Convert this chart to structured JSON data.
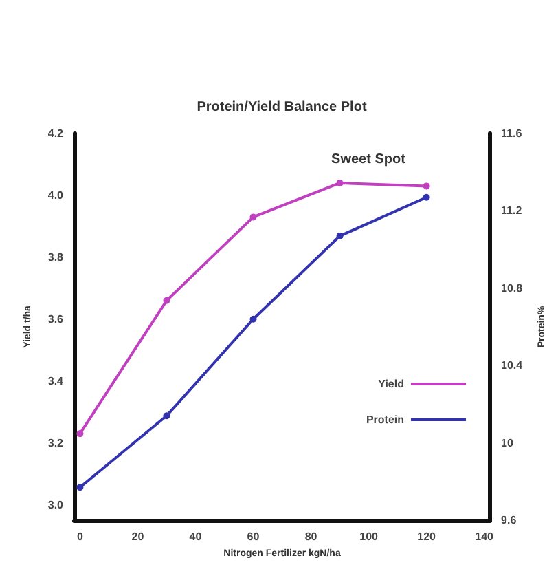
{
  "chart_data": {
    "type": "line",
    "title": "Protein/Yield Balance Plot",
    "xlabel": "Nitrogen Fertilizer kgN/ha",
    "ylabel": "Yield t/ha",
    "y2label": "Protein%",
    "x": [
      0,
      30,
      60,
      90,
      120
    ],
    "series": [
      {
        "name": "Yield",
        "color": "#c040c0",
        "values": [
          3.23,
          3.66,
          3.93,
          4.04,
          4.03
        ]
      },
      {
        "name": "Protein",
        "color": "#3333b0",
        "axis": "y2",
        "values": [
          9.77,
          10.14,
          10.64,
          11.07,
          11.27
        ]
      }
    ],
    "xlim": [
      -2,
      142
    ],
    "xticks": [
      0,
      20,
      40,
      60,
      80,
      100,
      120,
      140
    ],
    "ylim": [
      2.95,
      4.2
    ],
    "yticks": [
      {
        "value": 3,
        "label": "3.0"
      },
      3.2,
      3.4,
      3.6,
      3.8,
      {
        "value": 4,
        "label": "4.0"
      },
      4.2
    ],
    "y2lim": [
      9.6,
      11.6
    ],
    "y2ticks": [
      9.6,
      10,
      10.4,
      10.8,
      11.2,
      11.6
    ],
    "annotations": [
      "Sweet Spot"
    ],
    "legend": "right",
    "grid": false,
    "marker": "circle",
    "line_style": "solid"
  }
}
